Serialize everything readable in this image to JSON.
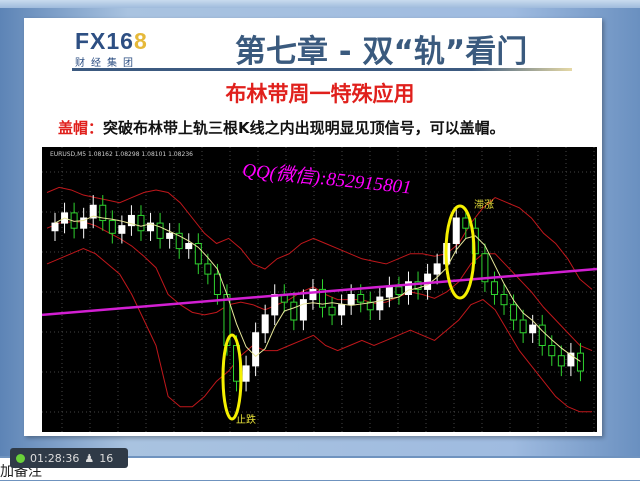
{
  "slide": {
    "logo": {
      "text_main": "FX16",
      "text_accent": "8",
      "sub": "财经集团"
    },
    "title": "第七章 - 双“轨”看门",
    "subtitle": "布林带周一特殊应用",
    "desc_label": "盖帽：",
    "desc_text": "突破布林带上轨三根K线之内出现明显见顶信号，可以盖帽。"
  },
  "chart": {
    "symbol_line": "EURUSD,M5 1.08162 1.08298 1.08101 1.08236",
    "watermark": "QQ(微信):852915801",
    "annotation_top": "滞涨",
    "annotation_bottom": "止跌",
    "colors": {
      "background": "#000000",
      "up": "#ffffff",
      "down": "#2fd32f",
      "band": "#c0171b",
      "middle": "#e8e89a",
      "trend": "#d21fd2",
      "highlight": "#f5f000"
    }
  },
  "chart_data": {
    "type": "candlestick",
    "ylim": [
      0,
      100
    ],
    "closes": [
      78,
      82,
      76,
      80,
      85,
      79,
      74,
      77,
      81,
      75,
      78,
      72,
      74,
      68,
      70,
      62,
      58,
      50,
      30,
      16,
      22,
      35,
      42,
      50,
      47,
      40,
      48,
      52,
      45,
      42,
      46,
      50,
      47,
      44,
      49,
      53,
      50,
      55,
      52,
      58,
      62,
      70,
      80,
      76,
      66,
      55,
      50,
      46,
      40,
      35,
      38,
      30,
      26,
      22,
      27,
      20
    ],
    "upper_band": [
      90,
      92,
      91,
      89,
      88,
      87,
      86,
      88,
      90,
      91,
      90,
      86,
      80,
      74,
      70,
      72,
      68,
      62,
      60,
      64,
      66,
      70,
      72,
      70,
      68,
      66,
      64,
      63,
      62,
      64,
      66,
      66,
      65,
      66,
      70,
      78,
      84,
      88,
      86,
      84,
      80,
      74,
      70,
      64,
      56,
      52
    ],
    "lower_band": [
      62,
      64,
      66,
      68,
      66,
      62,
      58,
      50,
      40,
      30,
      10,
      6,
      6,
      10,
      16,
      20,
      26,
      30,
      28,
      28,
      30,
      32,
      34,
      30,
      28,
      30,
      32,
      30,
      32,
      34,
      36,
      34,
      32,
      36,
      40,
      46,
      48,
      44,
      36,
      28,
      22,
      16,
      10,
      6,
      4,
      4
    ],
    "trendline": [
      42,
      60
    ]
  },
  "status": {
    "time": "01:28:36",
    "viewers": "16"
  },
  "bottom_text": "加备注"
}
